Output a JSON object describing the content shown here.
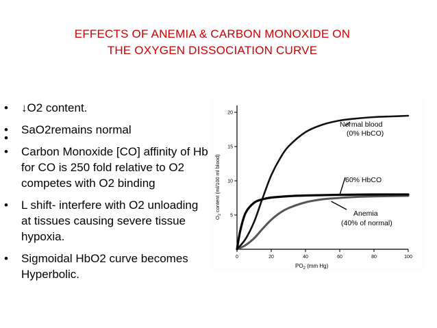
{
  "slide": {
    "title_line1": "EFFECTS OF ANEMIA & CARBON MONOXIDE ON",
    "title_line2": "THE OXYGEN DISSOCIATION CURVE",
    "title_color": "#cc0000",
    "bullet_glyph": "•",
    "bullets": [
      "↓O2 content.",
      "SaO2remains normal",
      "Carbon Monoxide [CO] affinity of Hb for CO is 250 fold relative to O2 competes with O2 binding",
      " L shift- interfere with O2 unloading at tissues causing severe tissue hypoxia.",
      "Sigmoidal HbO2 curve becomes Hyperbolic."
    ]
  },
  "chart_data": {
    "type": "line",
    "xlabel": "PO2 (mm Hg)",
    "ylabel": "O2 content (ml/100 ml blood)",
    "xlim": [
      0,
      100
    ],
    "ylim": [
      0,
      21
    ],
    "x_ticks": [
      0,
      20,
      40,
      60,
      80,
      100
    ],
    "y_ticks": [
      5,
      10,
      15,
      20
    ],
    "grid": false,
    "series": [
      {
        "name": "Normal blood (0% HbCO)",
        "color": "#111111",
        "x": [
          0,
          5,
          10,
          15,
          20,
          25,
          30,
          40,
          50,
          60,
          70,
          80,
          90,
          100
        ],
        "y": [
          0,
          1.5,
          4.0,
          7.5,
          10.8,
          13.2,
          15.0,
          17.1,
          18.2,
          18.8,
          19.1,
          19.3,
          19.4,
          19.5
        ]
      },
      {
        "name": "60% HbCO",
        "color": "#000000",
        "x": [
          0,
          2,
          5,
          10,
          15,
          20,
          30,
          40,
          60,
          80,
          100
        ],
        "y": [
          0,
          2.8,
          5.3,
          6.8,
          7.3,
          7.55,
          7.75,
          7.85,
          7.95,
          8.0,
          8.0
        ]
      },
      {
        "name": "Anemia (40% of normal)",
        "color": "#555555",
        "x": [
          0,
          5,
          10,
          15,
          20,
          25,
          30,
          40,
          50,
          60,
          70,
          80,
          100
        ],
        "y": [
          0,
          0.6,
          1.6,
          3.0,
          4.3,
          5.3,
          6.0,
          6.85,
          7.3,
          7.5,
          7.65,
          7.72,
          7.8
        ]
      }
    ],
    "annotations": [
      {
        "line1": "Normal blood",
        "line2": "(0% HbCO)"
      },
      {
        "line1": "60% HbCO",
        "line2": ""
      },
      {
        "line1": "Anemia",
        "line2": "(40% of normal)"
      }
    ]
  }
}
